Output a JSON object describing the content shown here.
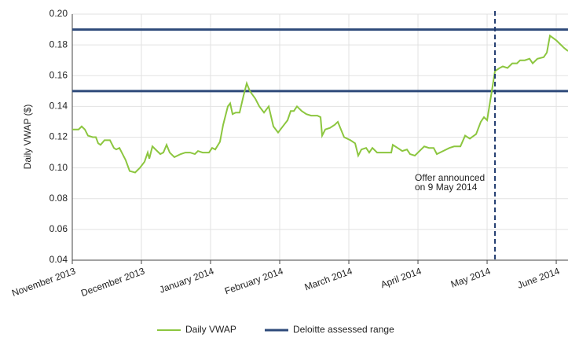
{
  "chart_data": {
    "type": "line",
    "y_label": "Daily VWAP ($)",
    "xlim": [
      0,
      7.17
    ],
    "xticks": [
      {
        "value": 0,
        "label": "November 2013"
      },
      {
        "value": 1,
        "label": "December 2013"
      },
      {
        "value": 2,
        "label": "January 2014"
      },
      {
        "value": 3,
        "label": "February 2014"
      },
      {
        "value": 4,
        "label": "March 2014"
      },
      {
        "value": 5,
        "label": "April 2014"
      },
      {
        "value": 6,
        "label": "May 2014"
      },
      {
        "value": 7,
        "label": "June 2014"
      }
    ],
    "ylim": [
      0.04,
      0.2
    ],
    "yticks": [
      {
        "value": 0.04,
        "label": "0.04"
      },
      {
        "value": 0.06,
        "label": "0.06"
      },
      {
        "value": 0.08,
        "label": "0.08"
      },
      {
        "value": 0.1,
        "label": "0.10"
      },
      {
        "value": 0.12,
        "label": "0.12"
      },
      {
        "value": 0.14,
        "label": "0.14"
      },
      {
        "value": 0.16,
        "label": "0.16"
      },
      {
        "value": 0.18,
        "label": "0.18"
      },
      {
        "value": 0.2,
        "label": "0.20"
      }
    ],
    "grid": true,
    "x": [
      0,
      0.091,
      0.136,
      0.182,
      0.227,
      0.295,
      0.341,
      0.375,
      0.409,
      0.466,
      0.545,
      0.602,
      0.636,
      0.682,
      0.773,
      0.83,
      0.909,
      0.977,
      1.045,
      1.091,
      1.114,
      1.159,
      1.227,
      1.273,
      1.318,
      1.364,
      1.409,
      1.477,
      1.568,
      1.636,
      1.705,
      1.773,
      1.818,
      1.886,
      1.977,
      2.023,
      2.068,
      2.136,
      2.182,
      2.25,
      2.284,
      2.318,
      2.364,
      2.42,
      2.477,
      2.523,
      2.568,
      2.648,
      2.705,
      2.773,
      2.841,
      2.909,
      2.977,
      3.045,
      3.114,
      3.159,
      3.205,
      3.25,
      3.318,
      3.386,
      3.455,
      3.545,
      3.591,
      3.614,
      3.659,
      3.727,
      3.795,
      3.841,
      3.886,
      3.932,
      4.023,
      4.091,
      4.136,
      4.182,
      4.25,
      4.295,
      4.341,
      4.409,
      4.523,
      4.614,
      4.636,
      4.705,
      4.773,
      4.841,
      4.886,
      4.955,
      5.045,
      5.091,
      5.159,
      5.227,
      5.273,
      5.364,
      5.455,
      5.523,
      5.614,
      5.682,
      5.75,
      5.841,
      5.909,
      5.955,
      6.0,
      6.068,
      6.114,
      6.182,
      6.227,
      6.295,
      6.364,
      6.432,
      6.477,
      6.545,
      6.614,
      6.659,
      6.727,
      6.818,
      6.864,
      6.909,
      7.0,
      7.068,
      7.114,
      7.17
    ],
    "series": [
      {
        "name": "Daily VWAP",
        "color": "#8cc63f",
        "values": [
          0.125,
          0.125,
          0.127,
          0.125,
          0.121,
          0.12,
          0.12,
          0.116,
          0.115,
          0.118,
          0.118,
          0.113,
          0.112,
          0.113,
          0.105,
          0.098,
          0.097,
          0.1,
          0.104,
          0.11,
          0.106,
          0.114,
          0.111,
          0.109,
          0.11,
          0.115,
          0.11,
          0.107,
          0.109,
          0.11,
          0.11,
          0.109,
          0.111,
          0.11,
          0.11,
          0.113,
          0.112,
          0.117,
          0.128,
          0.14,
          0.142,
          0.135,
          0.136,
          0.136,
          0.147,
          0.155,
          0.15,
          0.145,
          0.14,
          0.136,
          0.14,
          0.127,
          0.123,
          0.127,
          0.131,
          0.137,
          0.137,
          0.14,
          0.137,
          0.135,
          0.134,
          0.134,
          0.133,
          0.121,
          0.125,
          0.126,
          0.128,
          0.13,
          0.125,
          0.12,
          0.118,
          0.116,
          0.108,
          0.112,
          0.113,
          0.11,
          0.113,
          0.11,
          0.11,
          0.11,
          0.115,
          0.113,
          0.111,
          0.112,
          0.109,
          0.108,
          0.112,
          0.114,
          0.113,
          0.113,
          0.109,
          0.111,
          0.113,
          0.114,
          0.114,
          0.121,
          0.119,
          0.122,
          0.13,
          0.133,
          0.131,
          0.15,
          0.163,
          0.165,
          0.166,
          0.165,
          0.168,
          0.168,
          0.17,
          0.17,
          0.171,
          0.168,
          0.171,
          0.172,
          0.175,
          0.186,
          0.183,
          0.18,
          0.178,
          0.176
        ]
      }
    ],
    "range": {
      "name": "Deloitte assessed range",
      "color": "#2e4a7a",
      "values": [
        0.15,
        0.19
      ]
    },
    "annotation": {
      "lines": [
        "Offer announced",
        "on 9 May 2014"
      ],
      "x": 6.114,
      "color": "#1f3a6e"
    }
  }
}
